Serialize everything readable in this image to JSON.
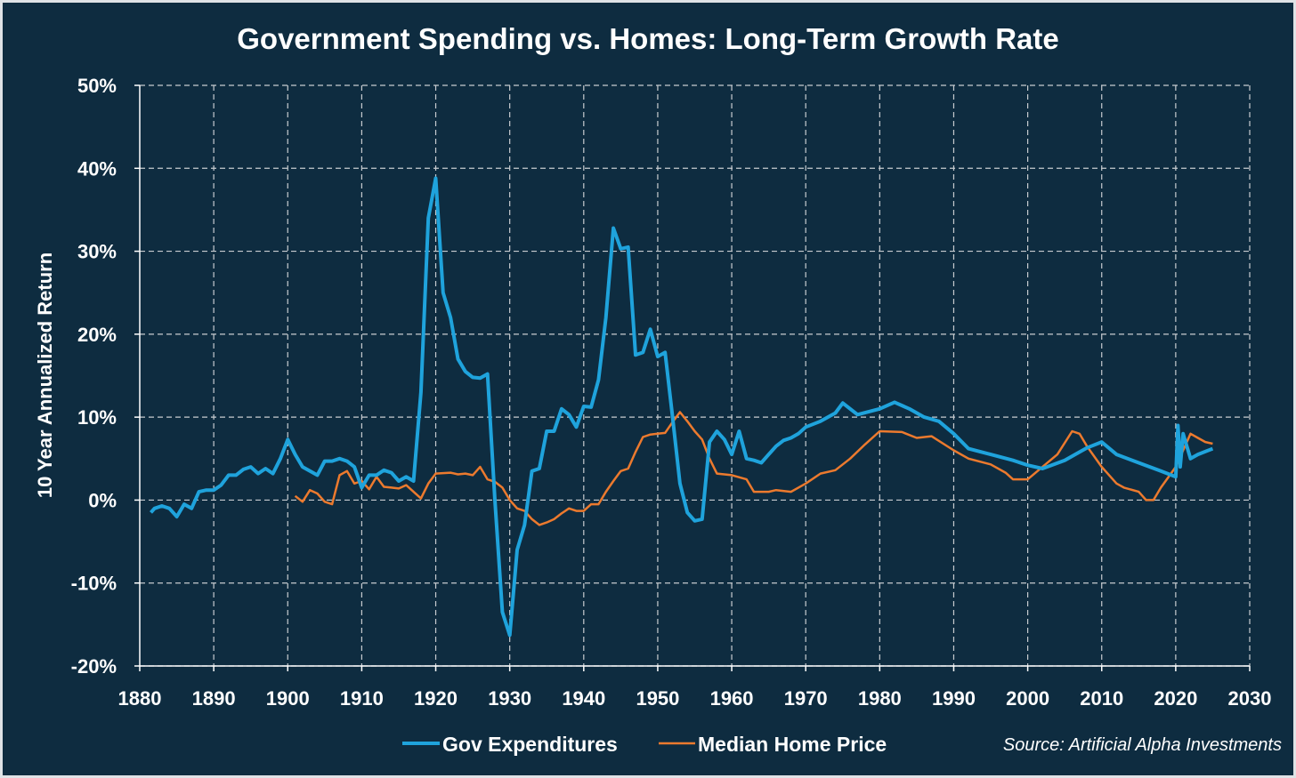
{
  "chart_data": {
    "type": "line",
    "title": "Government Spending vs. Homes: Long-Term Growth Rate",
    "xlabel": "",
    "ylabel": "10 Year Annualized Return",
    "xlim": [
      1880,
      2030
    ],
    "ylim": [
      -20,
      50
    ],
    "x_ticks": [
      "1880",
      "1890",
      "1900",
      "1910",
      "1920",
      "1930",
      "1940",
      "1950",
      "1960",
      "1970",
      "1980",
      "1990",
      "2000",
      "2010",
      "2020",
      "2030"
    ],
    "y_ticks": [
      "-20%",
      "-10%",
      "0%",
      "10%",
      "20%",
      "30%",
      "40%",
      "50%"
    ],
    "grid": true,
    "legend_position": "bottom",
    "source": "Source: Artificial Alpha Investments",
    "colors": {
      "background": "#0e2c40",
      "gov": "#1fa3dc",
      "home": "#ec7a2e",
      "grid": "#c8ccd0"
    },
    "series": [
      {
        "name": "Gov Expenditures",
        "points": [
          [
            1881.5,
            -1.5
          ],
          [
            1882,
            -1
          ],
          [
            1883,
            -0.7
          ],
          [
            1884,
            -1
          ],
          [
            1885,
            -2
          ],
          [
            1886,
            -0.5
          ],
          [
            1887,
            -1
          ],
          [
            1888,
            1
          ],
          [
            1889,
            1.2
          ],
          [
            1890,
            1.2
          ],
          [
            1891,
            1.8
          ],
          [
            1892,
            3
          ],
          [
            1893,
            3
          ],
          [
            1894,
            3.7
          ],
          [
            1895,
            4
          ],
          [
            1896,
            3.2
          ],
          [
            1897,
            3.8
          ],
          [
            1898,
            3.2
          ],
          [
            1899,
            5
          ],
          [
            1900,
            7.3
          ],
          [
            1901,
            5.5
          ],
          [
            1902,
            4
          ],
          [
            1903,
            3.5
          ],
          [
            1904,
            3
          ],
          [
            1905,
            4.7
          ],
          [
            1906,
            4.7
          ],
          [
            1907,
            5
          ],
          [
            1908,
            4.7
          ],
          [
            1909,
            4
          ],
          [
            1910,
            1.5
          ],
          [
            1911,
            3
          ],
          [
            1912,
            3
          ],
          [
            1913,
            3.6
          ],
          [
            1914,
            3.3
          ],
          [
            1915,
            2.3
          ],
          [
            1916,
            2.8
          ],
          [
            1917,
            2.3
          ],
          [
            1918,
            13
          ],
          [
            1919,
            34
          ],
          [
            1920,
            38.8
          ],
          [
            1921,
            25
          ],
          [
            1922,
            22
          ],
          [
            1923,
            17
          ],
          [
            1924,
            15.5
          ],
          [
            1925,
            14.8
          ],
          [
            1926,
            14.7
          ],
          [
            1927,
            15.2
          ],
          [
            1928,
            0
          ],
          [
            1929,
            -13.5
          ],
          [
            1930,
            -16.3
          ],
          [
            1931,
            -6
          ],
          [
            1932,
            -3
          ],
          [
            1933,
            3.5
          ],
          [
            1934,
            3.8
          ],
          [
            1935,
            8.3
          ],
          [
            1936,
            8.3
          ],
          [
            1937,
            11
          ],
          [
            1938,
            10.3
          ],
          [
            1939,
            8.8
          ],
          [
            1940,
            11.3
          ],
          [
            1941,
            11.2
          ],
          [
            1942,
            14.5
          ],
          [
            1943,
            22
          ],
          [
            1944,
            32.8
          ],
          [
            1945,
            30.3
          ],
          [
            1946,
            30.5
          ],
          [
            1947,
            17.5
          ],
          [
            1948,
            17.8
          ],
          [
            1949,
            20.6
          ],
          [
            1950,
            17.3
          ],
          [
            1951,
            17.8
          ],
          [
            1952,
            10
          ],
          [
            1953,
            2
          ],
          [
            1954,
            -1.5
          ],
          [
            1955,
            -2.5
          ],
          [
            1956,
            -2.3
          ],
          [
            1957,
            7
          ],
          [
            1958,
            8.3
          ],
          [
            1959,
            7.3
          ],
          [
            1960,
            5.5
          ],
          [
            1961,
            8.3
          ],
          [
            1962,
            5
          ],
          [
            1963,
            4.8
          ],
          [
            1964,
            4.5
          ],
          [
            1965,
            5.5
          ],
          [
            1966,
            6.5
          ],
          [
            1967,
            7.2
          ],
          [
            1968,
            7.5
          ],
          [
            1969,
            8
          ],
          [
            1970,
            8.8
          ],
          [
            1972,
            9.5
          ],
          [
            1974,
            10.5
          ],
          [
            1975,
            11.7
          ],
          [
            1977,
            10.3
          ],
          [
            1980,
            11
          ],
          [
            1982,
            11.8
          ],
          [
            1984,
            11
          ],
          [
            1986,
            10
          ],
          [
            1988,
            9.5
          ],
          [
            1990,
            8
          ],
          [
            1992,
            6.2
          ],
          [
            1995,
            5.5
          ],
          [
            1998,
            4.8
          ],
          [
            2000,
            4.2
          ],
          [
            2002,
            3.8
          ],
          [
            2005,
            4.8
          ],
          [
            2008,
            6.3
          ],
          [
            2010,
            7
          ],
          [
            2012,
            5.5
          ],
          [
            2015,
            4.5
          ],
          [
            2018,
            3.5
          ],
          [
            2020,
            2.8
          ],
          [
            2020.3,
            9
          ],
          [
            2020.6,
            4
          ],
          [
            2021,
            8
          ],
          [
            2022,
            5
          ],
          [
            2023,
            5.5
          ],
          [
            2025,
            6.2
          ]
        ]
      },
      {
        "name": "Median Home Price",
        "points": [
          [
            1901,
            0.5
          ],
          [
            1902,
            -0.2
          ],
          [
            1903,
            1.2
          ],
          [
            1904,
            0.8
          ],
          [
            1905,
            -0.2
          ],
          [
            1906,
            -0.5
          ],
          [
            1907,
            3
          ],
          [
            1908,
            3.5
          ],
          [
            1909,
            2
          ],
          [
            1910,
            2.3
          ],
          [
            1911,
            1.3
          ],
          [
            1912,
            2.8
          ],
          [
            1913,
            1.6
          ],
          [
            1914,
            1.5
          ],
          [
            1915,
            1.4
          ],
          [
            1916,
            1.8
          ],
          [
            1917,
            1
          ],
          [
            1918,
            0.2
          ],
          [
            1919,
            2
          ],
          [
            1920,
            3.2
          ],
          [
            1922,
            3.3
          ],
          [
            1923,
            3.1
          ],
          [
            1924,
            3.2
          ],
          [
            1925,
            3.0
          ],
          [
            1926,
            4.0
          ],
          [
            1927,
            2.5
          ],
          [
            1928,
            2.2
          ],
          [
            1929,
            1.5
          ],
          [
            1930,
            0
          ],
          [
            1931,
            -1
          ],
          [
            1932,
            -1.3
          ],
          [
            1933,
            -2.3
          ],
          [
            1934,
            -3
          ],
          [
            1935,
            -2.7
          ],
          [
            1936,
            -2.3
          ],
          [
            1937,
            -1.6
          ],
          [
            1938,
            -1
          ],
          [
            1939,
            -1.3
          ],
          [
            1940,
            -1.3
          ],
          [
            1941,
            -0.5
          ],
          [
            1942,
            -0.5
          ],
          [
            1943,
            1
          ],
          [
            1944,
            2.3
          ],
          [
            1945,
            3.5
          ],
          [
            1946,
            3.8
          ],
          [
            1947,
            5.8
          ],
          [
            1948,
            7.6
          ],
          [
            1949,
            7.9
          ],
          [
            1950,
            8.0
          ],
          [
            1951,
            8.1
          ],
          [
            1952,
            9.4
          ],
          [
            1953,
            10.6
          ],
          [
            1954,
            9.5
          ],
          [
            1955,
            8.3
          ],
          [
            1956,
            7.3
          ],
          [
            1957,
            5
          ],
          [
            1958,
            3.2
          ],
          [
            1960,
            3
          ],
          [
            1962,
            2.5
          ],
          [
            1963,
            1
          ],
          [
            1965,
            1
          ],
          [
            1966,
            1.2
          ],
          [
            1968,
            1.0
          ],
          [
            1970,
            2
          ],
          [
            1972,
            3.2
          ],
          [
            1974,
            3.6
          ],
          [
            1976,
            5
          ],
          [
            1978,
            6.7
          ],
          [
            1980,
            8.3
          ],
          [
            1983,
            8.2
          ],
          [
            1985,
            7.5
          ],
          [
            1987,
            7.7
          ],
          [
            1990,
            6
          ],
          [
            1992,
            5
          ],
          [
            1995,
            4.3
          ],
          [
            1997,
            3.3
          ],
          [
            1998,
            2.5
          ],
          [
            2000,
            2.5
          ],
          [
            2002,
            4
          ],
          [
            2004,
            5.5
          ],
          [
            2006,
            8.3
          ],
          [
            2007,
            8
          ],
          [
            2008,
            6.5
          ],
          [
            2010,
            4
          ],
          [
            2012,
            2
          ],
          [
            2013,
            1.5
          ],
          [
            2015,
            1
          ],
          [
            2016,
            0
          ],
          [
            2017,
            0
          ],
          [
            2018,
            1.5
          ],
          [
            2020,
            4
          ],
          [
            2021,
            6
          ],
          [
            2022,
            8
          ],
          [
            2023,
            7.5
          ],
          [
            2024,
            7
          ],
          [
            2025,
            6.8
          ]
        ]
      }
    ]
  }
}
